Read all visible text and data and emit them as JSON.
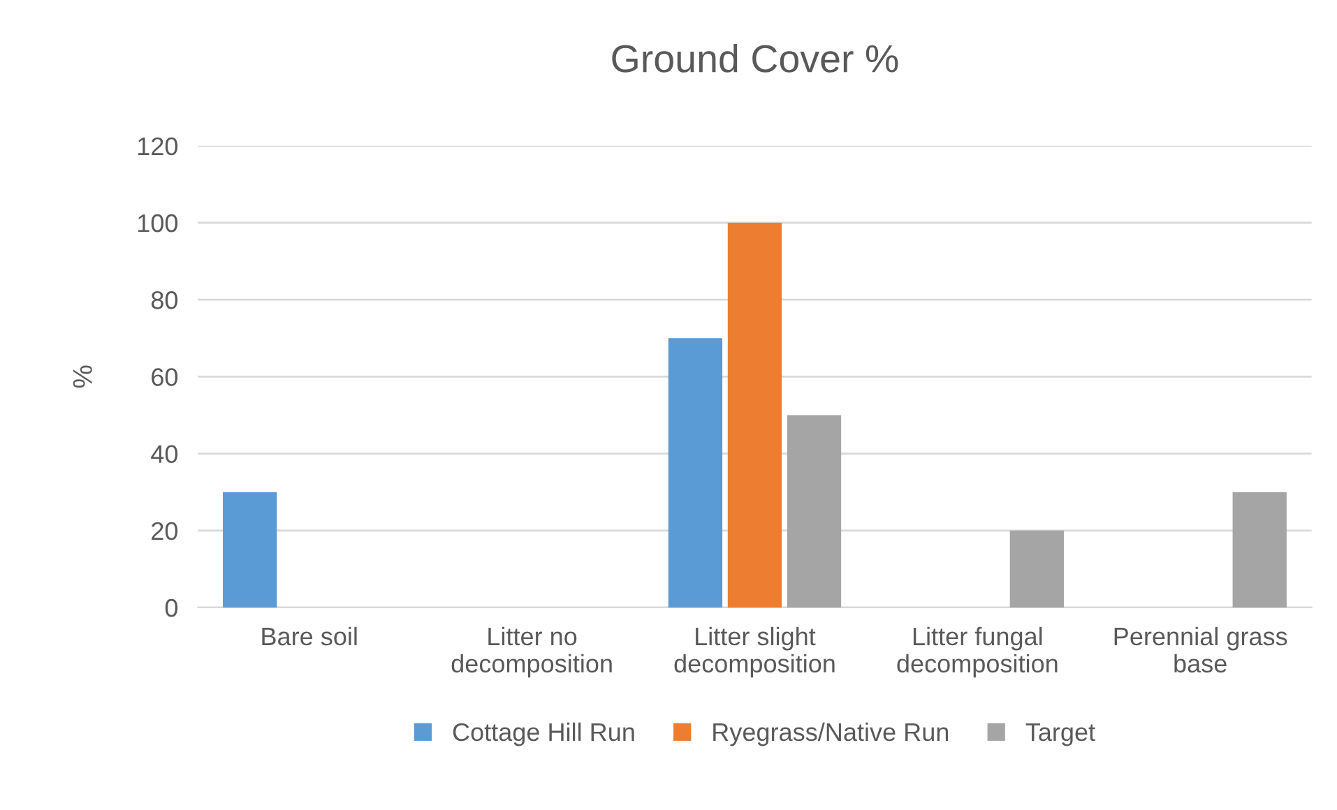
{
  "chart_data": {
    "type": "bar",
    "title": "Ground Cover %",
    "ylabel": "%",
    "categories": [
      "Bare soil",
      "Litter no\ndecomposition",
      "Litter slight\ndecomposition",
      "Litter fungal\ndecomposition",
      "Perennial grass\nbase"
    ],
    "series": [
      {
        "name": "Cottage Hill Run",
        "color": "#5b9bd5",
        "values": [
          30,
          0,
          70,
          0,
          0
        ]
      },
      {
        "name": "Ryegrass/Native Run",
        "color": "#ed7d31",
        "values": [
          0,
          0,
          100,
          0,
          0
        ]
      },
      {
        "name": "Target",
        "color": "#a5a5a5",
        "values": [
          0,
          0,
          50,
          20,
          30
        ]
      }
    ],
    "ylim": [
      0,
      120
    ],
    "yticks": [
      0,
      20,
      40,
      60,
      80,
      100,
      120
    ],
    "grid": "y",
    "legend": "bottom"
  }
}
